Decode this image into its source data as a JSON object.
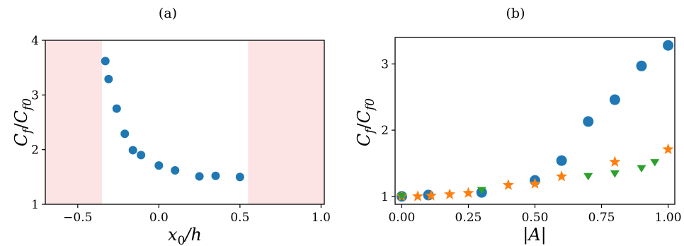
{
  "chart_data": [
    {
      "type": "scatter",
      "panel_label": "(a)",
      "xlabel": "x₀/h",
      "ylabel": "C_f/C_f0",
      "xlim": [
        -0.7,
        1.02
      ],
      "ylim": [
        1,
        4
      ],
      "xticks": [
        -0.5,
        0.0,
        0.5,
        1.0
      ],
      "xtick_labels": [
        "−0.5",
        "0.0",
        "0.5",
        "1.0"
      ],
      "yticks": [
        1,
        2,
        3,
        4
      ],
      "ytick_labels": [
        "1",
        "2",
        "3",
        "4"
      ],
      "shaded_regions": [
        {
          "from": -0.7,
          "to": -0.35,
          "color": "#fde4e4"
        },
        {
          "from": 0.55,
          "to": 1.02,
          "color": "#fde4e4"
        }
      ],
      "grid": false,
      "series": [
        {
          "color": "#1f77b4",
          "marker": "circle",
          "x": [
            -0.33,
            -0.31,
            -0.26,
            -0.21,
            -0.16,
            -0.11,
            0.0,
            0.1,
            0.25,
            0.35,
            0.5
          ],
          "y": [
            3.62,
            3.29,
            2.75,
            2.29,
            1.99,
            1.9,
            1.71,
            1.62,
            1.51,
            1.52,
            1.5
          ]
        }
      ]
    },
    {
      "type": "scatter",
      "panel_label": "(b)",
      "xlabel": "|A|",
      "ylabel": "C_f/C_f0",
      "xlim": [
        -0.025,
        1.025
      ],
      "ylim": [
        0.88,
        3.4
      ],
      "xticks": [
        0.0,
        0.25,
        0.5,
        0.75,
        1.0
      ],
      "xtick_labels": [
        "0.00",
        "0.25",
        "0.50",
        "0.75",
        "1.00"
      ],
      "yticks": [
        1,
        2,
        3
      ],
      "ytick_labels": [
        "1",
        "2",
        "3"
      ],
      "grid": false,
      "series": [
        {
          "color": "#1f77b4",
          "marker": "circle",
          "x": [
            0.0,
            0.1,
            0.3,
            0.5,
            0.6,
            0.7,
            0.8,
            0.9,
            1.0
          ],
          "y": [
            1.0,
            1.02,
            1.06,
            1.24,
            1.54,
            2.13,
            2.46,
            2.97,
            3.28
          ]
        },
        {
          "color": "#ff7f0e",
          "marker": "star",
          "x": [
            0.0,
            0.06,
            0.11,
            0.18,
            0.25,
            0.4,
            0.5,
            0.6,
            0.8,
            1.0
          ],
          "y": [
            1.0,
            1.0,
            1.01,
            1.03,
            1.05,
            1.17,
            1.19,
            1.3,
            1.52,
            1.71
          ]
        },
        {
          "color": "#2ca02c",
          "marker": "triangle-down",
          "x": [
            0.0,
            0.3,
            0.7,
            0.8,
            0.9,
            0.95
          ],
          "y": [
            1.0,
            1.09,
            1.3,
            1.34,
            1.42,
            1.51
          ]
        }
      ]
    }
  ]
}
